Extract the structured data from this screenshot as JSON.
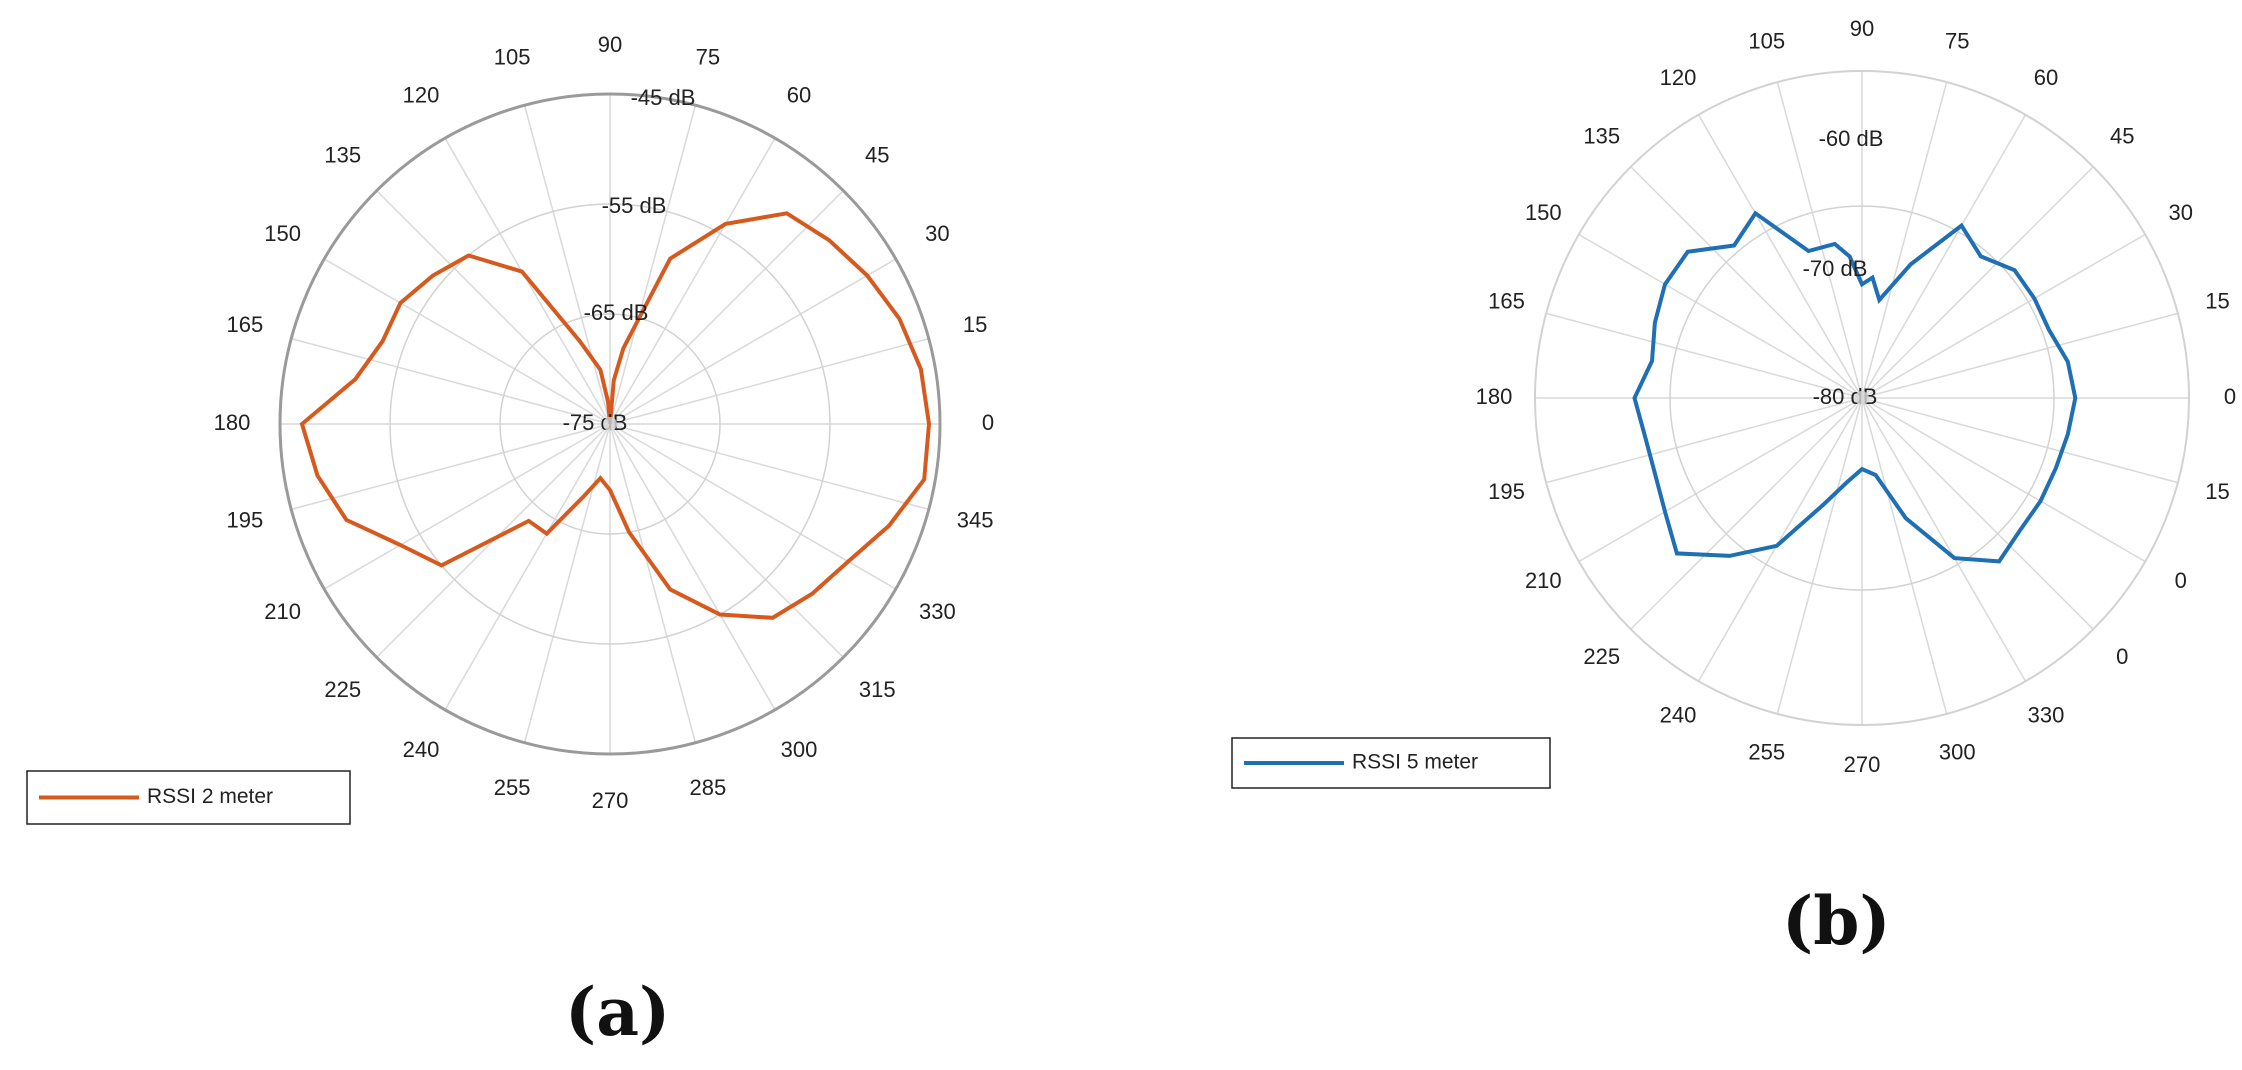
{
  "chart_data": [
    {
      "type": "polar-line",
      "panel_label": "(a)",
      "theta_labels": [
        "90",
        "75",
        "60",
        "45",
        "30",
        "15",
        "0",
        "345",
        "330",
        "315",
        "300",
        "285",
        "270",
        "255",
        "240",
        "225",
        "210",
        "195",
        "180",
        "165",
        "150",
        "135",
        "120",
        "105"
      ],
      "radial_labels": [
        "-45 dB",
        "-55 dB",
        "-65 dB",
        "-75 dB"
      ],
      "radial_range": [
        -75,
        -45
      ],
      "grid": true,
      "legend_position": "bottom-left",
      "series": [
        {
          "name": "RSSI 2 meter",
          "color": "#D65A1E",
          "theta": [
            0,
            10,
            20,
            30,
            40,
            50,
            60,
            70,
            80,
            85,
            90,
            95,
            100,
            110,
            120,
            130,
            140,
            150,
            160,
            170,
            180,
            190,
            200,
            210,
            220,
            230,
            240,
            250,
            260,
            270,
            280,
            290,
            300,
            310,
            320,
            330,
            340,
            350
          ],
          "r": [
            -46,
            -46.3,
            -47,
            -48,
            -49,
            -50,
            -54,
            -59,
            -68,
            -71,
            -75,
            -73,
            -70,
            -67,
            -59,
            -55,
            -54,
            -53,
            -53,
            -51.5,
            -47,
            -48,
            -49.5,
            -53,
            -55,
            -63.5,
            -63.5,
            -68,
            -70,
            -69,
            -65,
            -59,
            -55,
            -52,
            -51,
            -50,
            -48,
            -46
          ]
        }
      ]
    },
    {
      "type": "polar-line",
      "panel_label": "(b)",
      "theta_labels": [
        "90",
        "75",
        "60",
        "45",
        "30",
        "15",
        "0",
        "15",
        "0",
        "0",
        "330",
        "300",
        "270",
        "255",
        "240",
        "225",
        "210",
        "195",
        "180",
        "165",
        "150",
        "135",
        "120",
        "105"
      ],
      "radial_labels": [
        "-60 dB",
        "-70 dB",
        "-80 dB"
      ],
      "radial_range": [
        -80,
        -57
      ],
      "grid": true,
      "legend_position": "bottom-left",
      "series": [
        {
          "name": "RSSI 5 meter",
          "color": "#1F6FB5",
          "theta": [
            0,
            10,
            20,
            30,
            40,
            50,
            60,
            70,
            80,
            85,
            90,
            95,
            100,
            110,
            120,
            130,
            140,
            150,
            160,
            170,
            180,
            190,
            200,
            210,
            220,
            230,
            240,
            250,
            260,
            270,
            280,
            290,
            300,
            310,
            320,
            330,
            340,
            350
          ],
          "r": [
            -65,
            -65.3,
            -66,
            -66,
            -66,
            -67,
            -66,
            -70,
            -73,
            -71.5,
            -72,
            -70,
            -69,
            -69,
            -65,
            -66,
            -64,
            -64,
            -64.5,
            -65,
            -64,
            -64.5,
            -64.5,
            -64,
            -63,
            -65.5,
            -68,
            -72,
            -74,
            -75,
            -74.5,
            -71,
            -67,
            -65,
            -65.5,
            -65.5,
            -65.5,
            -65.3
          ]
        }
      ]
    }
  ]
}
